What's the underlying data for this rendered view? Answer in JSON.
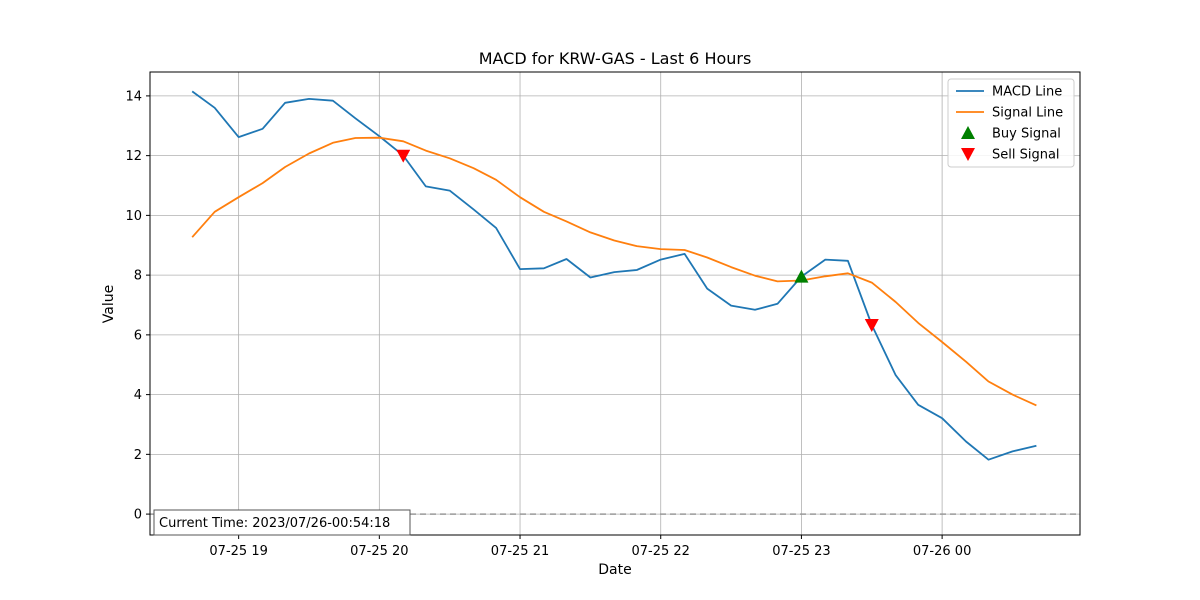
{
  "chart_data": {
    "type": "line",
    "title": "MACD for KRW-GAS - Last 6 Hours",
    "xlabel": "Date",
    "ylabel": "Value",
    "x_unit": "hours since 2023/07/25 18:00",
    "xlim": [
      18.37,
      24.98
    ],
    "ylim": [
      -0.7,
      14.8
    ],
    "x_ticks": [
      {
        "value": 19,
        "label": "07-25 19"
      },
      {
        "value": 20,
        "label": "07-25 20"
      },
      {
        "value": 21,
        "label": "07-25 21"
      },
      {
        "value": 22,
        "label": "07-25 22"
      },
      {
        "value": 23,
        "label": "07-25 23"
      },
      {
        "value": 24,
        "label": "07-26 00"
      }
    ],
    "y_ticks": [
      0,
      2,
      4,
      6,
      8,
      10,
      12,
      14
    ],
    "grid": true,
    "legend_position": "top-right",
    "series": [
      {
        "name": "MACD Line",
        "color": "#1f77b4",
        "points": [
          [
            18.67,
            14.15
          ],
          [
            18.83,
            13.6
          ],
          [
            19.0,
            12.62
          ],
          [
            19.17,
            12.9
          ],
          [
            19.33,
            13.77
          ],
          [
            19.5,
            13.9
          ],
          [
            19.67,
            13.84
          ],
          [
            19.83,
            13.25
          ],
          [
            20.0,
            12.65
          ],
          [
            20.17,
            12.0
          ],
          [
            20.33,
            10.97
          ],
          [
            20.5,
            10.83
          ],
          [
            20.67,
            10.2
          ],
          [
            20.83,
            9.58
          ],
          [
            21.0,
            8.2
          ],
          [
            21.17,
            8.23
          ],
          [
            21.33,
            8.54
          ],
          [
            21.5,
            7.92
          ],
          [
            21.67,
            8.1
          ],
          [
            21.83,
            8.17
          ],
          [
            22.0,
            8.52
          ],
          [
            22.17,
            8.71
          ],
          [
            22.33,
            7.55
          ],
          [
            22.5,
            6.98
          ],
          [
            22.67,
            6.84
          ],
          [
            22.83,
            7.04
          ],
          [
            23.0,
            7.95
          ],
          [
            23.17,
            8.52
          ],
          [
            23.33,
            8.48
          ],
          [
            23.5,
            6.33
          ],
          [
            23.67,
            4.65
          ],
          [
            23.83,
            3.66
          ],
          [
            24.0,
            3.21
          ],
          [
            24.17,
            2.43
          ],
          [
            24.33,
            1.82
          ],
          [
            24.5,
            2.1
          ],
          [
            24.67,
            2.29
          ]
        ]
      },
      {
        "name": "Signal Line",
        "color": "#ff7f0e",
        "points": [
          [
            18.67,
            9.27
          ],
          [
            18.83,
            10.12
          ],
          [
            19.0,
            10.61
          ],
          [
            19.17,
            11.08
          ],
          [
            19.33,
            11.62
          ],
          [
            19.5,
            12.07
          ],
          [
            19.67,
            12.43
          ],
          [
            19.83,
            12.59
          ],
          [
            20.0,
            12.6
          ],
          [
            20.17,
            12.48
          ],
          [
            20.33,
            12.17
          ],
          [
            20.5,
            11.91
          ],
          [
            20.67,
            11.58
          ],
          [
            20.83,
            11.19
          ],
          [
            21.0,
            10.61
          ],
          [
            21.17,
            10.12
          ],
          [
            21.33,
            9.8
          ],
          [
            21.5,
            9.43
          ],
          [
            21.67,
            9.16
          ],
          [
            21.83,
            8.97
          ],
          [
            22.0,
            8.87
          ],
          [
            22.17,
            8.84
          ],
          [
            22.33,
            8.59
          ],
          [
            22.5,
            8.27
          ],
          [
            22.67,
            7.98
          ],
          [
            22.83,
            7.79
          ],
          [
            23.0,
            7.82
          ],
          [
            23.17,
            7.96
          ],
          [
            23.33,
            8.06
          ],
          [
            23.5,
            7.75
          ],
          [
            23.67,
            7.1
          ],
          [
            23.83,
            6.4
          ],
          [
            24.0,
            5.76
          ],
          [
            24.17,
            5.1
          ],
          [
            24.33,
            4.44
          ],
          [
            24.5,
            4.0
          ],
          [
            24.67,
            3.64
          ]
        ]
      },
      {
        "name": "Buy Signal",
        "color": "#008000",
        "marker": "triangle-up",
        "points": [
          [
            23.0,
            7.95
          ]
        ]
      },
      {
        "name": "Sell Signal",
        "color": "#ff0000",
        "marker": "triangle-down",
        "points": [
          [
            20.17,
            12.0
          ],
          [
            23.5,
            6.33
          ]
        ]
      }
    ],
    "zero_line": {
      "y": 0,
      "style": "dashed",
      "color": "#999999"
    },
    "annotation": "Current Time: 2023/07/26-00:54:18"
  }
}
